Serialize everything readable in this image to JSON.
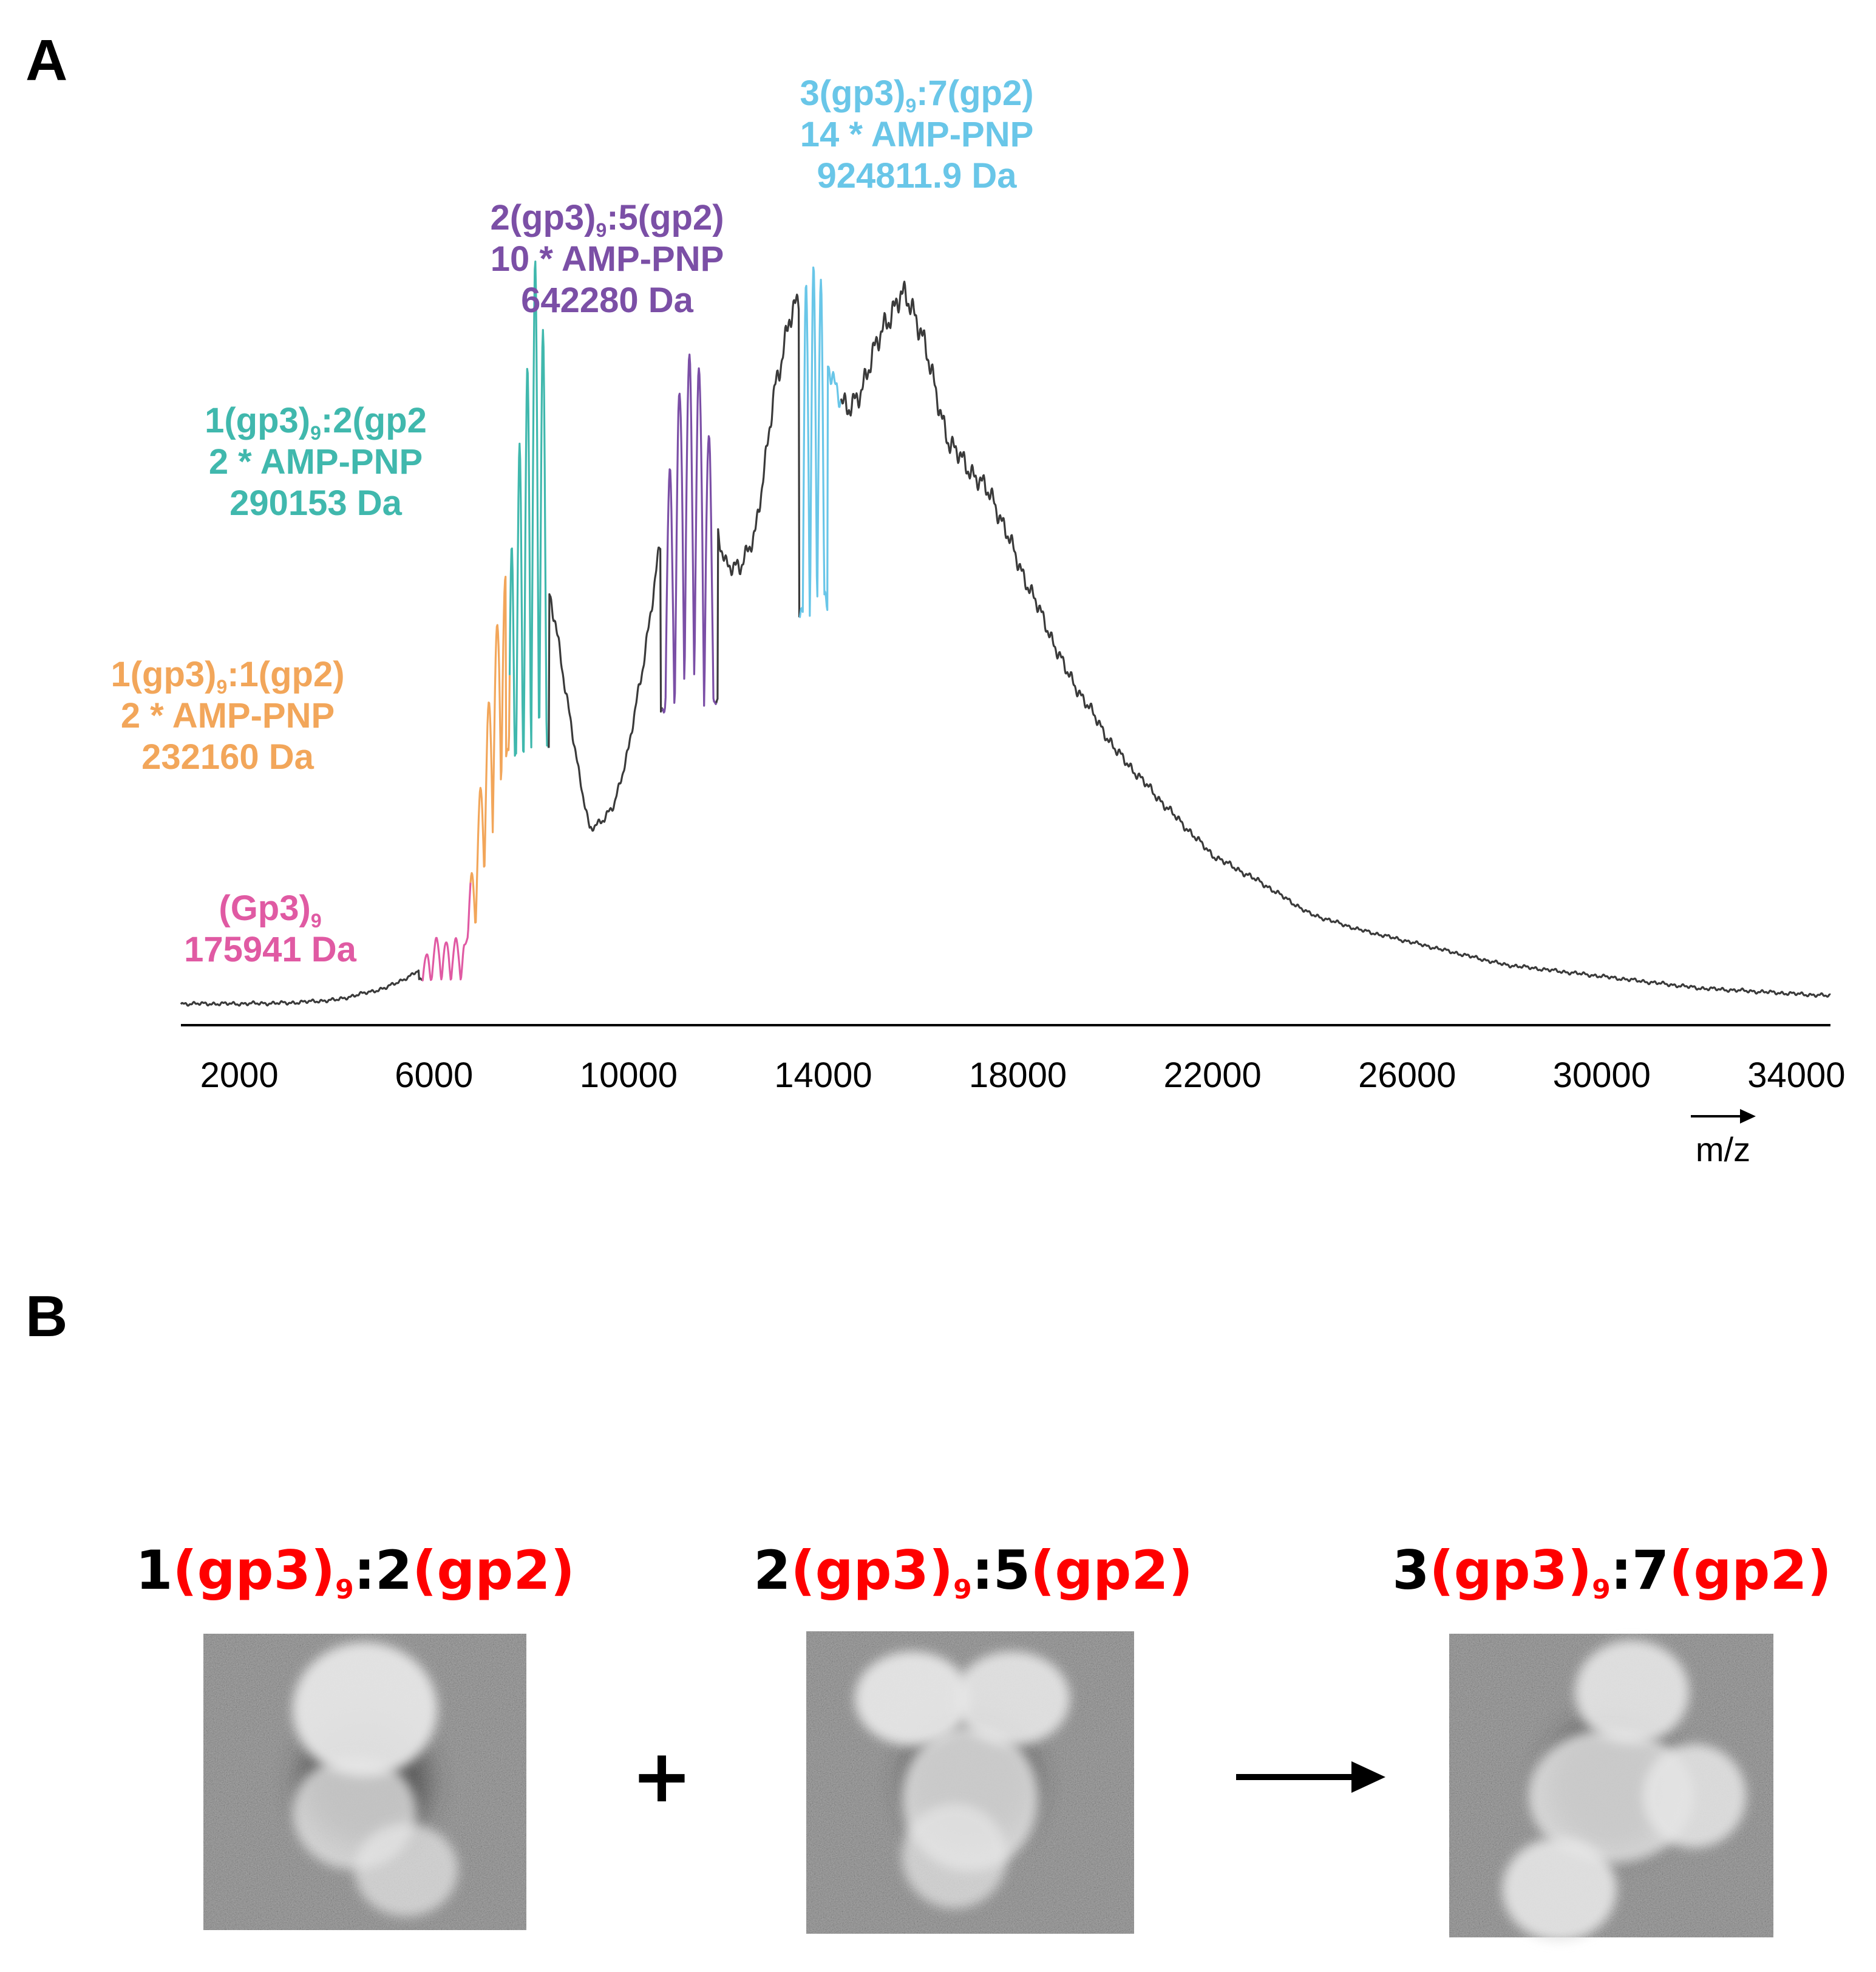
{
  "panels": {
    "a": "A",
    "b": "B"
  },
  "chart_data": {
    "type": "line",
    "title": "",
    "xlabel": "m/z",
    "ylabel": "",
    "xlim": [
      800,
      34700
    ],
    "ylim": [
      0,
      100
    ],
    "xticks": [
      2000,
      6000,
      10000,
      14000,
      18000,
      22000,
      26000,
      30000,
      34000
    ],
    "xtick_labels": [
      "2000",
      "6000",
      "10000",
      "14000",
      "18000",
      "22000",
      "26000",
      "30000",
      "34000"
    ],
    "colors": {
      "baseline": "#3a3a3a",
      "gp3_9": "#e05aa3",
      "s1_1": "#f2a65a",
      "s1_2": "#40b8ad",
      "s2_5": "#7b4fa6",
      "s3_7": "#69c6e8"
    },
    "envelope": {
      "x": [
        800,
        2000,
        3000,
        4000,
        5000,
        5500,
        6000,
        6500,
        6800,
        7000,
        7200,
        7500,
        7800,
        8000,
        8200,
        8500,
        8800,
        9000,
        9200,
        9500,
        9700,
        10000,
        10300,
        10600,
        10800,
        11000,
        11300,
        11600,
        12000,
        12300,
        12600,
        12800,
        13000,
        13300,
        13500,
        13700,
        14000,
        14300,
        14500,
        14700,
        15000,
        15300,
        15600,
        15800,
        16000,
        16300,
        16600,
        17000,
        17500,
        18000,
        18500,
        19000,
        20000,
        21000,
        22000,
        23000,
        24000,
        25000,
        26000,
        27000,
        28000,
        30000,
        32000,
        34700
      ],
      "y": [
        1.5,
        1.5,
        1.6,
        2,
        3.5,
        5,
        7,
        10,
        14,
        18,
        30,
        48,
        55,
        60,
        58,
        50,
        38,
        30,
        24,
        25,
        27,
        34,
        45,
        58,
        66,
        74,
        74,
        66,
        58,
        57,
        62,
        70,
        80,
        89,
        91,
        90,
        85,
        80,
        77,
        79,
        84,
        89,
        92,
        91,
        88,
        80,
        73,
        70,
        66,
        58,
        51,
        44,
        34,
        27,
        20.5,
        17,
        13,
        11,
        9.5,
        8,
        6.5,
        5,
        3.5,
        2.5
      ]
    },
    "clusters": [
      {
        "name": "(Gp3)9",
        "series": "gp3_9",
        "x": [
          5850,
          6050,
          6250,
          6450,
          6650
        ],
        "heights": [
          8,
          10,
          9.5,
          10,
          10
        ],
        "width": 75
      },
      {
        "name": "1(gp3)9:1(gp2)",
        "series": "s1_1",
        "x": [
          6780,
          6960,
          7130,
          7300,
          7470
        ],
        "heights": [
          18,
          29,
          40,
          50,
          57
        ],
        "width": 75
      },
      {
        "name": "1(gp3)9:2(gp2)",
        "series": "s1_2",
        "x": [
          7600,
          7760,
          7920,
          8080,
          8240
        ],
        "heights": [
          60,
          72,
          82,
          97,
          88
        ],
        "width": 55
      },
      {
        "name": "2(gp3)9:5(gp2)",
        "series": "s2_5",
        "x": [
          10850,
          11050,
          11250,
          11450,
          11650
        ],
        "heights": [
          70,
          80,
          84,
          83,
          74
        ],
        "width": 85
      },
      {
        "name": "3(gp3)9:7(gp2)",
        "series": "s3_7",
        "x": [
          13650,
          13800,
          13950
        ],
        "heights": [
          93,
          95,
          94
        ],
        "width": 65
      }
    ],
    "colored_ranges": [
      {
        "series": "gp3_9",
        "range": [
          5750,
          6750
        ]
      },
      {
        "series": "s1_1",
        "range": [
          6750,
          7550
        ]
      },
      {
        "series": "s1_2",
        "range": [
          7550,
          8350
        ]
      },
      {
        "series": "s2_5",
        "range": [
          10700,
          11800
        ]
      },
      {
        "series": "s3_7",
        "range": [
          13500,
          14350
        ]
      }
    ],
    "annotations": [
      {
        "series": "gp3_9",
        "lines": [
          {
            "pre": "(Gp3)",
            "sub": "9",
            "post": ""
          },
          {
            "pre": "175941 Da",
            "sub": "",
            "post": ""
          }
        ]
      },
      {
        "series": "s1_1",
        "lines": [
          {
            "pre": "1(gp3)",
            "sub": "9",
            "post": ":1(gp2)"
          },
          {
            "pre": "2 * AMP-PNP",
            "sub": "",
            "post": ""
          },
          {
            "pre": "232160 Da",
            "sub": "",
            "post": ""
          }
        ]
      },
      {
        "series": "s1_2",
        "lines": [
          {
            "pre": "1(gp3)",
            "sub": "9",
            "post": ":2(gp2"
          },
          {
            "pre": "2 * AMP-PNP",
            "sub": "",
            "post": ""
          },
          {
            "pre": "290153 Da",
            "sub": "",
            "post": ""
          }
        ]
      },
      {
        "series": "s2_5",
        "lines": [
          {
            "pre": "2(gp3)",
            "sub": "9",
            "post": ":5(gp2)"
          },
          {
            "pre": "10 * AMP-PNP",
            "sub": "",
            "post": ""
          },
          {
            "pre": "642280 Da",
            "sub": "",
            "post": ""
          }
        ]
      },
      {
        "series": "s3_7",
        "lines": [
          {
            "pre": "3(gp3)",
            "sub": "9",
            "post": ":7(gp2)"
          },
          {
            "pre": "14 * AMP-PNP",
            "sub": "",
            "post": ""
          },
          {
            "pre": "924811.9 Da",
            "sub": "",
            "post": ""
          }
        ]
      }
    ]
  },
  "panel_b": {
    "operator_plus": "+",
    "title_color": "#ff0000",
    "complexes": [
      {
        "a": "1",
        "b": "(gp3)",
        "sub": "9",
        "c": ":2",
        "d": "(gp2)"
      },
      {
        "a": "2",
        "b": "(gp3)",
        "sub": "9",
        "c": ":5",
        "d": "(gp2)"
      },
      {
        "a": "3",
        "b": "(gp3)",
        "sub": "9",
        "c": ":7",
        "d": "(gp2)"
      }
    ],
    "blobs": [
      [
        [
          0,
          -14,
          14,
          13,
          0.95
        ],
        [
          -2,
          6,
          12,
          11,
          0.75
        ],
        [
          8,
          17,
          10,
          9,
          0.7
        ]
      ],
      [
        [
          -11,
          -16,
          11,
          9,
          0.95
        ],
        [
          8,
          -16,
          11,
          9,
          0.9
        ],
        [
          0,
          3,
          13,
          14,
          0.8
        ],
        [
          -3,
          14,
          10,
          10,
          0.7
        ]
      ],
      [
        [
          4,
          -18,
          11,
          10,
          0.9
        ],
        [
          0,
          2,
          16,
          13,
          0.8
        ],
        [
          16,
          2,
          10,
          10,
          0.85
        ],
        [
          -10,
          20,
          11,
          10,
          0.9
        ]
      ]
    ]
  }
}
